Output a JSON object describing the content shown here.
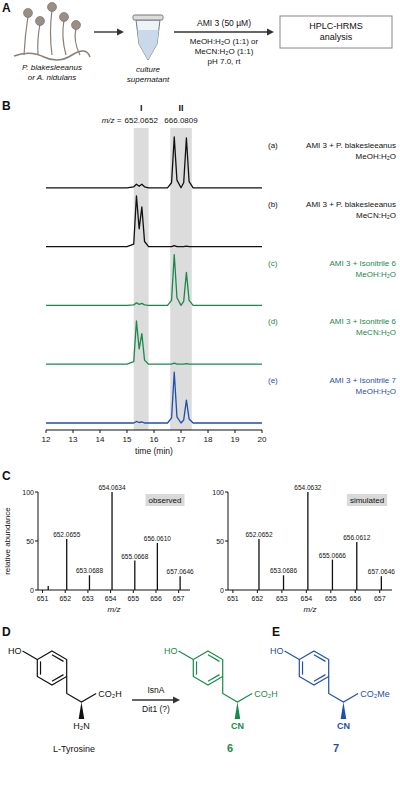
{
  "scheme": {
    "letter": "A",
    "organisms": [
      "P. blakesleeanus",
      "or A. nidulans"
    ],
    "sample": [
      "culture",
      "supernatant"
    ],
    "reagent": "AMI 3 (50 µM)",
    "conditions": [
      "MeOH:H₂O (1:1) or",
      "MeCN:H₂O (1:1)",
      "pH 7.0, rt"
    ],
    "analysis": [
      "HPLC-HRMS",
      "analysis"
    ]
  },
  "chart_data": [
    {
      "type": "line",
      "letter": "B",
      "x": [
        12,
        15.0,
        15.25,
        15.35,
        15.45,
        15.55,
        15.65,
        15.8,
        16.5,
        16.65,
        16.75,
        16.85,
        17.0,
        17.1,
        17.2,
        17.3,
        17.45,
        20
      ],
      "xlim": [
        12,
        20
      ],
      "xticks": [
        12,
        13,
        14,
        15,
        16,
        17,
        18,
        19,
        20
      ],
      "xlabel": "time (min)",
      "ylim": [
        0,
        1
      ],
      "tick_labels": "x",
      "mz_label": "m/z =",
      "regions": [
        {
          "label": "I",
          "mz": 652.0652,
          "xmin": 15.25,
          "xmax": 15.8
        },
        {
          "label": "II",
          "mz": 666.0809,
          "xmin": 16.6,
          "xmax": 17.4
        }
      ],
      "series": [
        {
          "label": "(a)",
          "name": "AMI 3 + P. blakesleeanus",
          "solvent": "MeOH:H₂O",
          "color": "#111111",
          "values": [
            0,
            0,
            0.02,
            0.07,
            0.03,
            0.07,
            0.02,
            0,
            0,
            0.1,
            1.0,
            0.15,
            0,
            0.1,
            0.98,
            0.12,
            0,
            0
          ]
        },
        {
          "label": "(b)",
          "name": "AMI 3 + P. blakesleeanus",
          "solvent": "MeCN:H₂O",
          "color": "#111111",
          "values": [
            0,
            0,
            0.05,
            1.0,
            0.35,
            0.78,
            0.1,
            0,
            0,
            0,
            0.02,
            0,
            0,
            0,
            0.01,
            0,
            0,
            0
          ]
        },
        {
          "label": "(c)",
          "name": "AMI 3 + Isonitrile 6",
          "solvent": "MeOH:H₂O",
          "color": "#1a8a4a",
          "values": [
            0,
            0,
            0.01,
            0.05,
            0.02,
            0.04,
            0.01,
            0,
            0,
            0.1,
            1.0,
            0.15,
            0,
            0.08,
            0.65,
            0.1,
            0,
            0
          ]
        },
        {
          "label": "(d)",
          "name": "AMI 3 + Isonitrile 6",
          "solvent": "MeCN:H₂O",
          "color": "#1a8a4a",
          "values": [
            0,
            0,
            0.05,
            0.85,
            0.3,
            0.6,
            0.08,
            0,
            0,
            0,
            0.02,
            0,
            0,
            0,
            0.01,
            0,
            0,
            0
          ]
        },
        {
          "label": "(e)",
          "name": "AMI 3 + Isonitrile 7",
          "solvent": "MeOH:H₂O",
          "color": "#1f4fa8",
          "values": [
            0,
            0,
            0,
            0.03,
            0.01,
            0.02,
            0,
            0,
            0,
            0.1,
            1.0,
            0.12,
            0,
            0.06,
            0.45,
            0.08,
            0,
            0
          ]
        }
      ]
    },
    {
      "type": "bar",
      "letter": "C",
      "title": "observed",
      "color": "#111111",
      "x": [
        651.25,
        652.0655,
        653.0688,
        654.0634,
        655.0668,
        656.061,
        657.0646
      ],
      "x_labels": [
        null,
        "652.0655",
        "653.0688",
        "654.0634",
        "655.0668",
        "656.0610",
        "657.0646"
      ],
      "values": [
        4,
        52,
        15,
        100,
        30,
        48,
        14
      ],
      "xlim": [
        650.8,
        657.5
      ],
      "xticks": [
        651,
        652,
        653,
        654,
        655,
        656,
        657
      ],
      "ylim": [
        0,
        100
      ],
      "yticks": [
        0,
        50,
        100
      ],
      "xlabel": "m/z",
      "ylabel": "relative abundance"
    },
    {
      "type": "bar",
      "title": "simulated",
      "color": "#111111",
      "x": [
        652.0652,
        653.0686,
        654.0632,
        655.0666,
        656.0612,
        657.0646
      ],
      "x_labels": [
        "652.0652",
        "653.0686",
        "654.0632",
        "655.0666",
        "656.0612",
        "657.0646"
      ],
      "values": [
        52,
        15,
        100,
        31,
        49,
        14
      ],
      "xlim": [
        650.8,
        657.5
      ],
      "xticks": [
        651,
        652,
        653,
        654,
        655,
        656,
        657
      ],
      "ylim": [
        0,
        100
      ],
      "yticks": [
        0,
        50,
        100
      ],
      "xlabel": "m/z"
    }
  ],
  "reaction": {
    "letter": "D",
    "reactant": {
      "top": "HO",
      "amine": "H₂N",
      "acid": "CO₂H",
      "name": "L-Tyrosine",
      "color": "#111111"
    },
    "enzymes": [
      "IsnA",
      "Dit1 (?)"
    ],
    "product": {
      "top": "HO",
      "amine": "CN",
      "acid": "CO₂H",
      "name": "6",
      "color": "#1a8a4a"
    }
  },
  "ester": {
    "letter": "E",
    "compound": {
      "top": "HO",
      "amine": "CN",
      "acid": "CO₂Me",
      "name": "7",
      "color": "#1f4fa8"
    }
  }
}
